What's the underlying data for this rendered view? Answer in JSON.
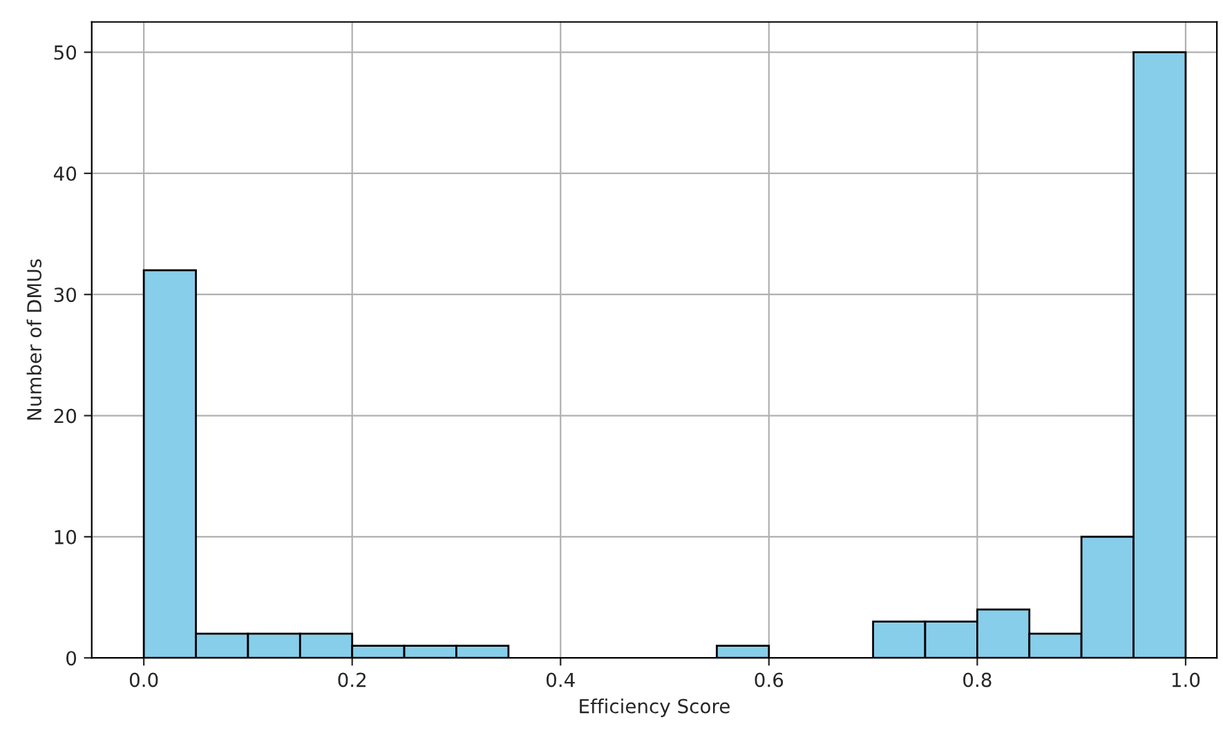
{
  "chart_data": {
    "type": "histogram",
    "xlabel": "Efficiency Score",
    "ylabel": "Number of DMUs",
    "bins": [
      0,
      0.05,
      0.1,
      0.15,
      0.2,
      0.25,
      0.3,
      0.35,
      0.4,
      0.45,
      0.5,
      0.55,
      0.6,
      0.65,
      0.7,
      0.75,
      0.8,
      0.85,
      0.9,
      0.95,
      1.0
    ],
    "values": [
      32,
      2,
      2,
      2,
      1,
      1,
      1,
      0,
      0,
      0,
      0,
      1,
      0,
      0,
      3,
      3,
      4,
      2,
      10,
      50
    ],
    "color": "#87ceeb",
    "xlim": [
      -0.05,
      1.03
    ],
    "xticks": [
      {
        "value": 0,
        "label": "0.0"
      },
      0.2,
      0.4,
      0.6,
      0.8,
      {
        "value": 1,
        "label": "1.0"
      }
    ],
    "ylim": [
      0,
      52.5
    ],
    "yticks": [
      0,
      10,
      20,
      30,
      40,
      50
    ],
    "grid": true
  }
}
